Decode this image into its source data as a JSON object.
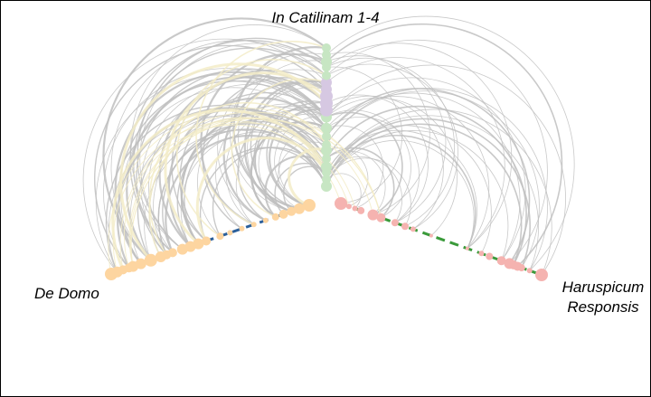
{
  "chart_data": {
    "type": "hive-plot",
    "axes": [
      {
        "id": "catilinam",
        "label": "In Catilinam 1-4",
        "color": "#c7e6c3",
        "segment_colors": [
          [
            "#d6c8e2",
            0.55,
            0.75
          ]
        ],
        "nodes": [
          0.0,
          0.05,
          0.1,
          0.14,
          0.2,
          0.26,
          0.3,
          0.36,
          0.42,
          0.5,
          0.55,
          0.6,
          0.65,
          0.7,
          0.75,
          0.8,
          0.86,
          0.9,
          0.95,
          1.0
        ]
      },
      {
        "id": "de-domo",
        "label": "De Domo",
        "color": "#fdd5a0",
        "edge_color": "#2b5f9a",
        "nodes": [
          0.0,
          0.03,
          0.06,
          0.09,
          0.11,
          0.15,
          0.2,
          0.25,
          0.28,
          0.31,
          0.36,
          0.4,
          0.44,
          0.48,
          0.55,
          0.6,
          0.66,
          0.72,
          0.78,
          0.83,
          0.87,
          0.91,
          0.95,
          1.0
        ]
      },
      {
        "id": "haruspicum",
        "label_lines": [
          "Haruspicum",
          "Responsis"
        ],
        "color": "#f5b3b0",
        "edge_color": "#3a9a3a",
        "nodes": [
          0.0,
          0.06,
          0.1,
          0.12,
          0.14,
          0.16,
          0.2,
          0.26,
          0.3,
          0.37,
          0.55,
          0.64,
          0.68,
          0.73,
          0.8,
          0.84,
          0.9,
          0.93,
          0.96,
          1.0
        ]
      }
    ],
    "link_colors": {
      "main": "#c0c0c0",
      "highlight": "#f3ecc8"
    }
  }
}
